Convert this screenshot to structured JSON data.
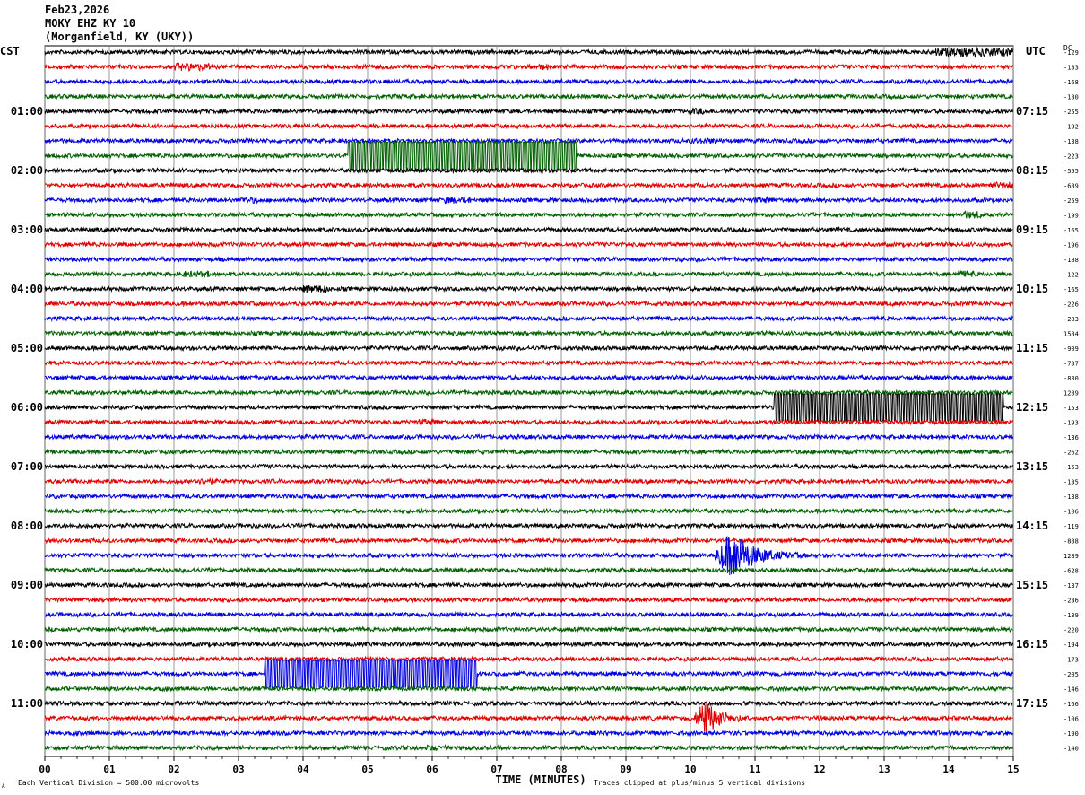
{
  "header": {
    "date": "Feb23,2026",
    "station": "MOKY EHZ KY 10",
    "location": "(Morganfield, KY (UKY))"
  },
  "labels": {
    "left_tz": "CST",
    "right_tz": "UTC",
    "dc": "DC",
    "footer_left": "Each Vertical Division =  500.00 microvolts",
    "footer_right": "Traces clipped at plus/minus 5 vertical divisions",
    "footer_corner": "A"
  },
  "colors": {
    "cycle": [
      "#000000",
      "#e00000",
      "#0000e0",
      "#006000"
    ],
    "grid": "#808080"
  },
  "chart_data": {
    "type": "line",
    "title": "MOKY EHZ KY 10 (Morganfield, KY (UKY)) Feb23,2026",
    "xlabel": "TIME (MINUTES)",
    "ylabel": "",
    "xlim": [
      0,
      15
    ],
    "x_ticks": [
      "00",
      "01",
      "02",
      "03",
      "04",
      "05",
      "06",
      "07",
      "08",
      "09",
      "10",
      "11",
      "12",
      "13",
      "14",
      "15"
    ],
    "grid": "vertical lines at each minute",
    "rows_per_hour": 4,
    "row_minutes": 15,
    "left_hour_labels": [
      {
        "row": 4,
        "text": "01:00"
      },
      {
        "row": 8,
        "text": "02:00"
      },
      {
        "row": 12,
        "text": "03:00"
      },
      {
        "row": 16,
        "text": "04:00"
      },
      {
        "row": 20,
        "text": "05:00"
      },
      {
        "row": 24,
        "text": "06:00"
      },
      {
        "row": 28,
        "text": "07:00"
      },
      {
        "row": 32,
        "text": "08:00"
      },
      {
        "row": 36,
        "text": "09:00"
      },
      {
        "row": 40,
        "text": "10:00"
      },
      {
        "row": 44,
        "text": "11:00"
      }
    ],
    "right_hour_labels": [
      {
        "row": 4,
        "text": "07:15"
      },
      {
        "row": 8,
        "text": "08:15"
      },
      {
        "row": 12,
        "text": "09:15"
      },
      {
        "row": 16,
        "text": "10:15"
      },
      {
        "row": 20,
        "text": "11:15"
      },
      {
        "row": 24,
        "text": "12:15"
      },
      {
        "row": 28,
        "text": "13:15"
      },
      {
        "row": 32,
        "text": "14:15"
      },
      {
        "row": 36,
        "text": "15:15"
      },
      {
        "row": 40,
        "text": "16:15"
      },
      {
        "row": 44,
        "text": "17:15"
      }
    ],
    "dc_offsets": [
      "-129",
      "-133",
      "-168",
      "-180",
      "-255",
      "-192",
      "-138",
      "-223",
      "-555",
      "-689",
      "-259",
      "-199",
      "-165",
      "-196",
      "-188",
      "-122",
      "-165",
      "-226",
      "-283",
      "1584",
      "-909",
      "-737",
      "-830",
      "1289",
      "-153",
      "-193",
      "-136",
      "-262",
      "-153",
      "-135",
      "-138",
      "-106",
      "-119",
      "-888",
      "1289",
      "-628",
      "-137",
      "-236",
      "-139",
      "-220",
      "-194",
      "-173",
      "-205",
      "-146",
      "-166",
      "-106",
      "-190",
      "-140"
    ],
    "series": [
      {
        "row": 0,
        "events": [
          {
            "type": "noise",
            "start": 13.8,
            "end": 15,
            "amp": 2.2
          }
        ]
      },
      {
        "row": 1,
        "events": [
          {
            "type": "noise",
            "start": 2.0,
            "end": 2.6,
            "amp": 2.0
          },
          {
            "type": "noise",
            "start": 7.5,
            "end": 7.8,
            "amp": 1.6
          }
        ]
      },
      {
        "row": 4,
        "events": [
          {
            "type": "noise",
            "start": 10.0,
            "end": 10.2,
            "amp": 1.7
          }
        ]
      },
      {
        "row": 6,
        "events": [
          {
            "type": "noise",
            "start": 10.0,
            "end": 10.4,
            "amp": 1.5
          }
        ]
      },
      {
        "row": 7,
        "events": [
          {
            "type": "clipped",
            "start": 4.7,
            "end": 8.25
          }
        ]
      },
      {
        "row": 9,
        "events": [
          {
            "type": "noise",
            "start": 14.6,
            "end": 15,
            "amp": 1.8
          }
        ]
      },
      {
        "row": 10,
        "events": [
          {
            "type": "noise",
            "start": 3.0,
            "end": 3.3,
            "amp": 1.6
          },
          {
            "type": "noise",
            "start": 6.2,
            "end": 6.6,
            "amp": 1.8
          },
          {
            "type": "noise",
            "start": 11.0,
            "end": 11.3,
            "amp": 1.6
          }
        ]
      },
      {
        "row": 11,
        "events": [
          {
            "type": "noise",
            "start": 14.2,
            "end": 14.5,
            "amp": 2.0
          }
        ]
      },
      {
        "row": 15,
        "events": [
          {
            "type": "noise",
            "start": 2.1,
            "end": 2.6,
            "amp": 1.7
          },
          {
            "type": "noise",
            "start": 14.1,
            "end": 14.4,
            "amp": 1.7
          }
        ]
      },
      {
        "row": 16,
        "events": [
          {
            "type": "noise",
            "start": 4.0,
            "end": 4.4,
            "amp": 2.0
          }
        ]
      },
      {
        "row": 24,
        "events": [
          {
            "type": "clipped",
            "start": 11.3,
            "end": 14.85
          }
        ]
      },
      {
        "row": 25,
        "events": [
          {
            "type": "noise",
            "start": 5.8,
            "end": 6.1,
            "amp": 1.6
          }
        ]
      },
      {
        "row": 29,
        "events": [
          {
            "type": "noise",
            "start": 2.3,
            "end": 2.6,
            "amp": 1.6
          }
        ]
      },
      {
        "row": 34,
        "events": [
          {
            "type": "quake",
            "start": 10.35,
            "end": 11.8,
            "amp": 4.8
          }
        ]
      },
      {
        "row": 42,
        "events": [
          {
            "type": "clipped",
            "start": 3.4,
            "end": 6.7
          }
        ]
      },
      {
        "row": 45,
        "events": [
          {
            "type": "quake",
            "start": 10.05,
            "end": 10.9,
            "amp": 4.2
          }
        ]
      },
      {
        "row": 47,
        "events": [
          {
            "type": "noise",
            "start": 5.9,
            "end": 6.3,
            "amp": 1.6
          }
        ]
      }
    ]
  }
}
